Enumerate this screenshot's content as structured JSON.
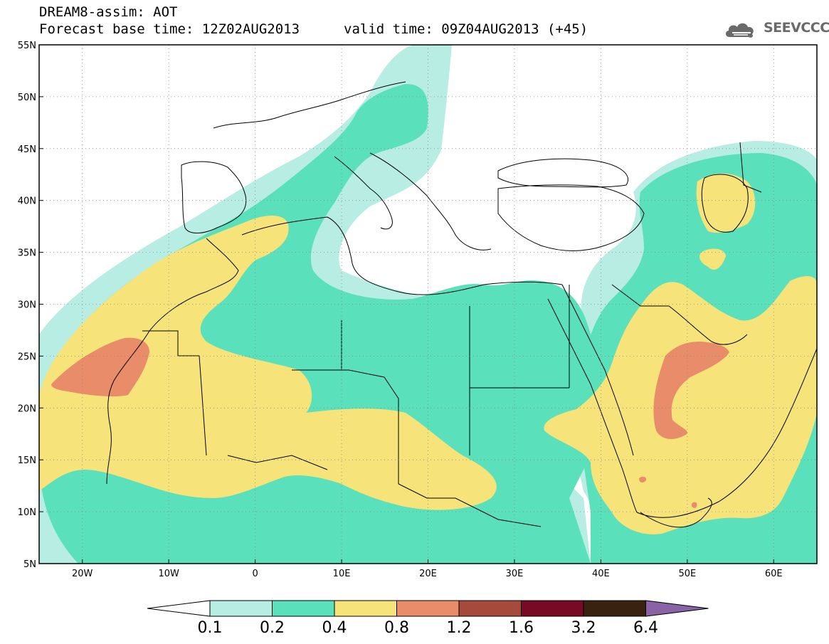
{
  "header": {
    "title_line_1": "DREAM8-assim: AOT",
    "title_line_2": "Forecast base time: 12Z02AUG2013",
    "valid_time": "valid time: 09Z04AUG2013 (+45)",
    "logo_text": "SEEVCCC",
    "logo_icon": "cloud-icon"
  },
  "map": {
    "lon_range": [
      -25,
      65
    ],
    "lat_range": [
      5,
      55
    ],
    "lon_ticks": [
      {
        "value": -20,
        "label": "20W"
      },
      {
        "value": -10,
        "label": "10W"
      },
      {
        "value": 0,
        "label": "0"
      },
      {
        "value": 10,
        "label": "10E"
      },
      {
        "value": 20,
        "label": "20E"
      },
      {
        "value": 30,
        "label": "30E"
      },
      {
        "value": 40,
        "label": "40E"
      },
      {
        "value": 50,
        "label": "50E"
      },
      {
        "value": 60,
        "label": "60E"
      }
    ],
    "lat_ticks": [
      {
        "value": 5,
        "label": "5N"
      },
      {
        "value": 10,
        "label": "10N"
      },
      {
        "value": 15,
        "label": "15N"
      },
      {
        "value": 20,
        "label": "20N"
      },
      {
        "value": 25,
        "label": "25N"
      },
      {
        "value": 30,
        "label": "30N"
      },
      {
        "value": 35,
        "label": "35N"
      },
      {
        "value": 40,
        "label": "40N"
      },
      {
        "value": 45,
        "label": "45N"
      },
      {
        "value": 50,
        "label": "50N"
      },
      {
        "value": 55,
        "label": "55N"
      }
    ],
    "grid": "dotted"
  },
  "colorbar": {
    "labels": [
      "0.1",
      "0.2",
      "0.4",
      "0.8",
      "1.2",
      "1.6",
      "3.2",
      "6.4"
    ],
    "colors": [
      "#ffffff",
      "#b7ede2",
      "#5ae0bb",
      "#f6e37a",
      "#e88c6a",
      "#a64a3c",
      "#780a26",
      "#3a2210",
      "#8a63a6"
    ]
  },
  "colors": {
    "level_1": "#b7ede2",
    "level_2": "#5ae0bb",
    "level_3": "#f6e37a",
    "level_4": "#e88c6a"
  }
}
